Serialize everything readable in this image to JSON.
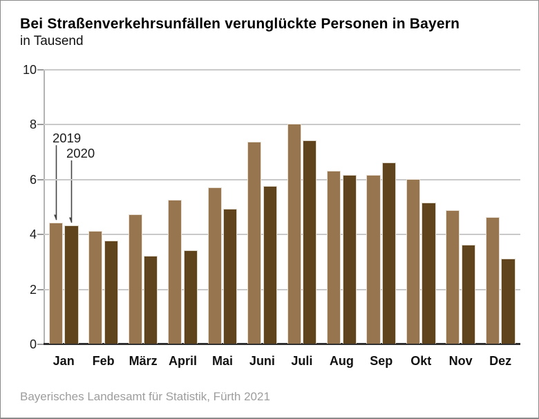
{
  "header": {
    "title": "Bei Straßenverkehrsunfällen verunglückte Personen in Bayern",
    "subtitle": "in Tausend"
  },
  "footer": {
    "source": "Bayerisches Landesamt für Statistik, Fürth 2021"
  },
  "chart_data": {
    "type": "bar",
    "title": "Bei Straßenverkehrsunfällen verunglückte Personen in Bayern",
    "subtitle": "in Tausend",
    "categories": [
      "Jan",
      "Feb",
      "März",
      "April",
      "Mai",
      "Juni",
      "Juli",
      "Aug",
      "Sep",
      "Okt",
      "Nov",
      "Dez"
    ],
    "series": [
      {
        "name": "2019",
        "color": "#97754e",
        "values": [
          4.4,
          4.1,
          4.7,
          5.25,
          5.7,
          7.35,
          8.0,
          6.3,
          6.15,
          6.0,
          4.85,
          4.6
        ]
      },
      {
        "name": "2020",
        "color": "#5f441e",
        "values": [
          4.3,
          3.75,
          3.2,
          3.4,
          4.9,
          5.75,
          7.4,
          6.15,
          6.6,
          5.15,
          3.6,
          3.1
        ]
      }
    ],
    "ylabel": "",
    "xlabel": "",
    "ylim": [
      0,
      10
    ],
    "ytick_step": 2,
    "grid": true,
    "legend_position": "arrow annotation above Jan bars",
    "colors": {
      "grid": "#c9c9c9",
      "axis": "#b3b3b3",
      "baseline": "#2e2e2e",
      "annotation_arrow": "#444444",
      "source_text": "#9d9d9d"
    }
  }
}
